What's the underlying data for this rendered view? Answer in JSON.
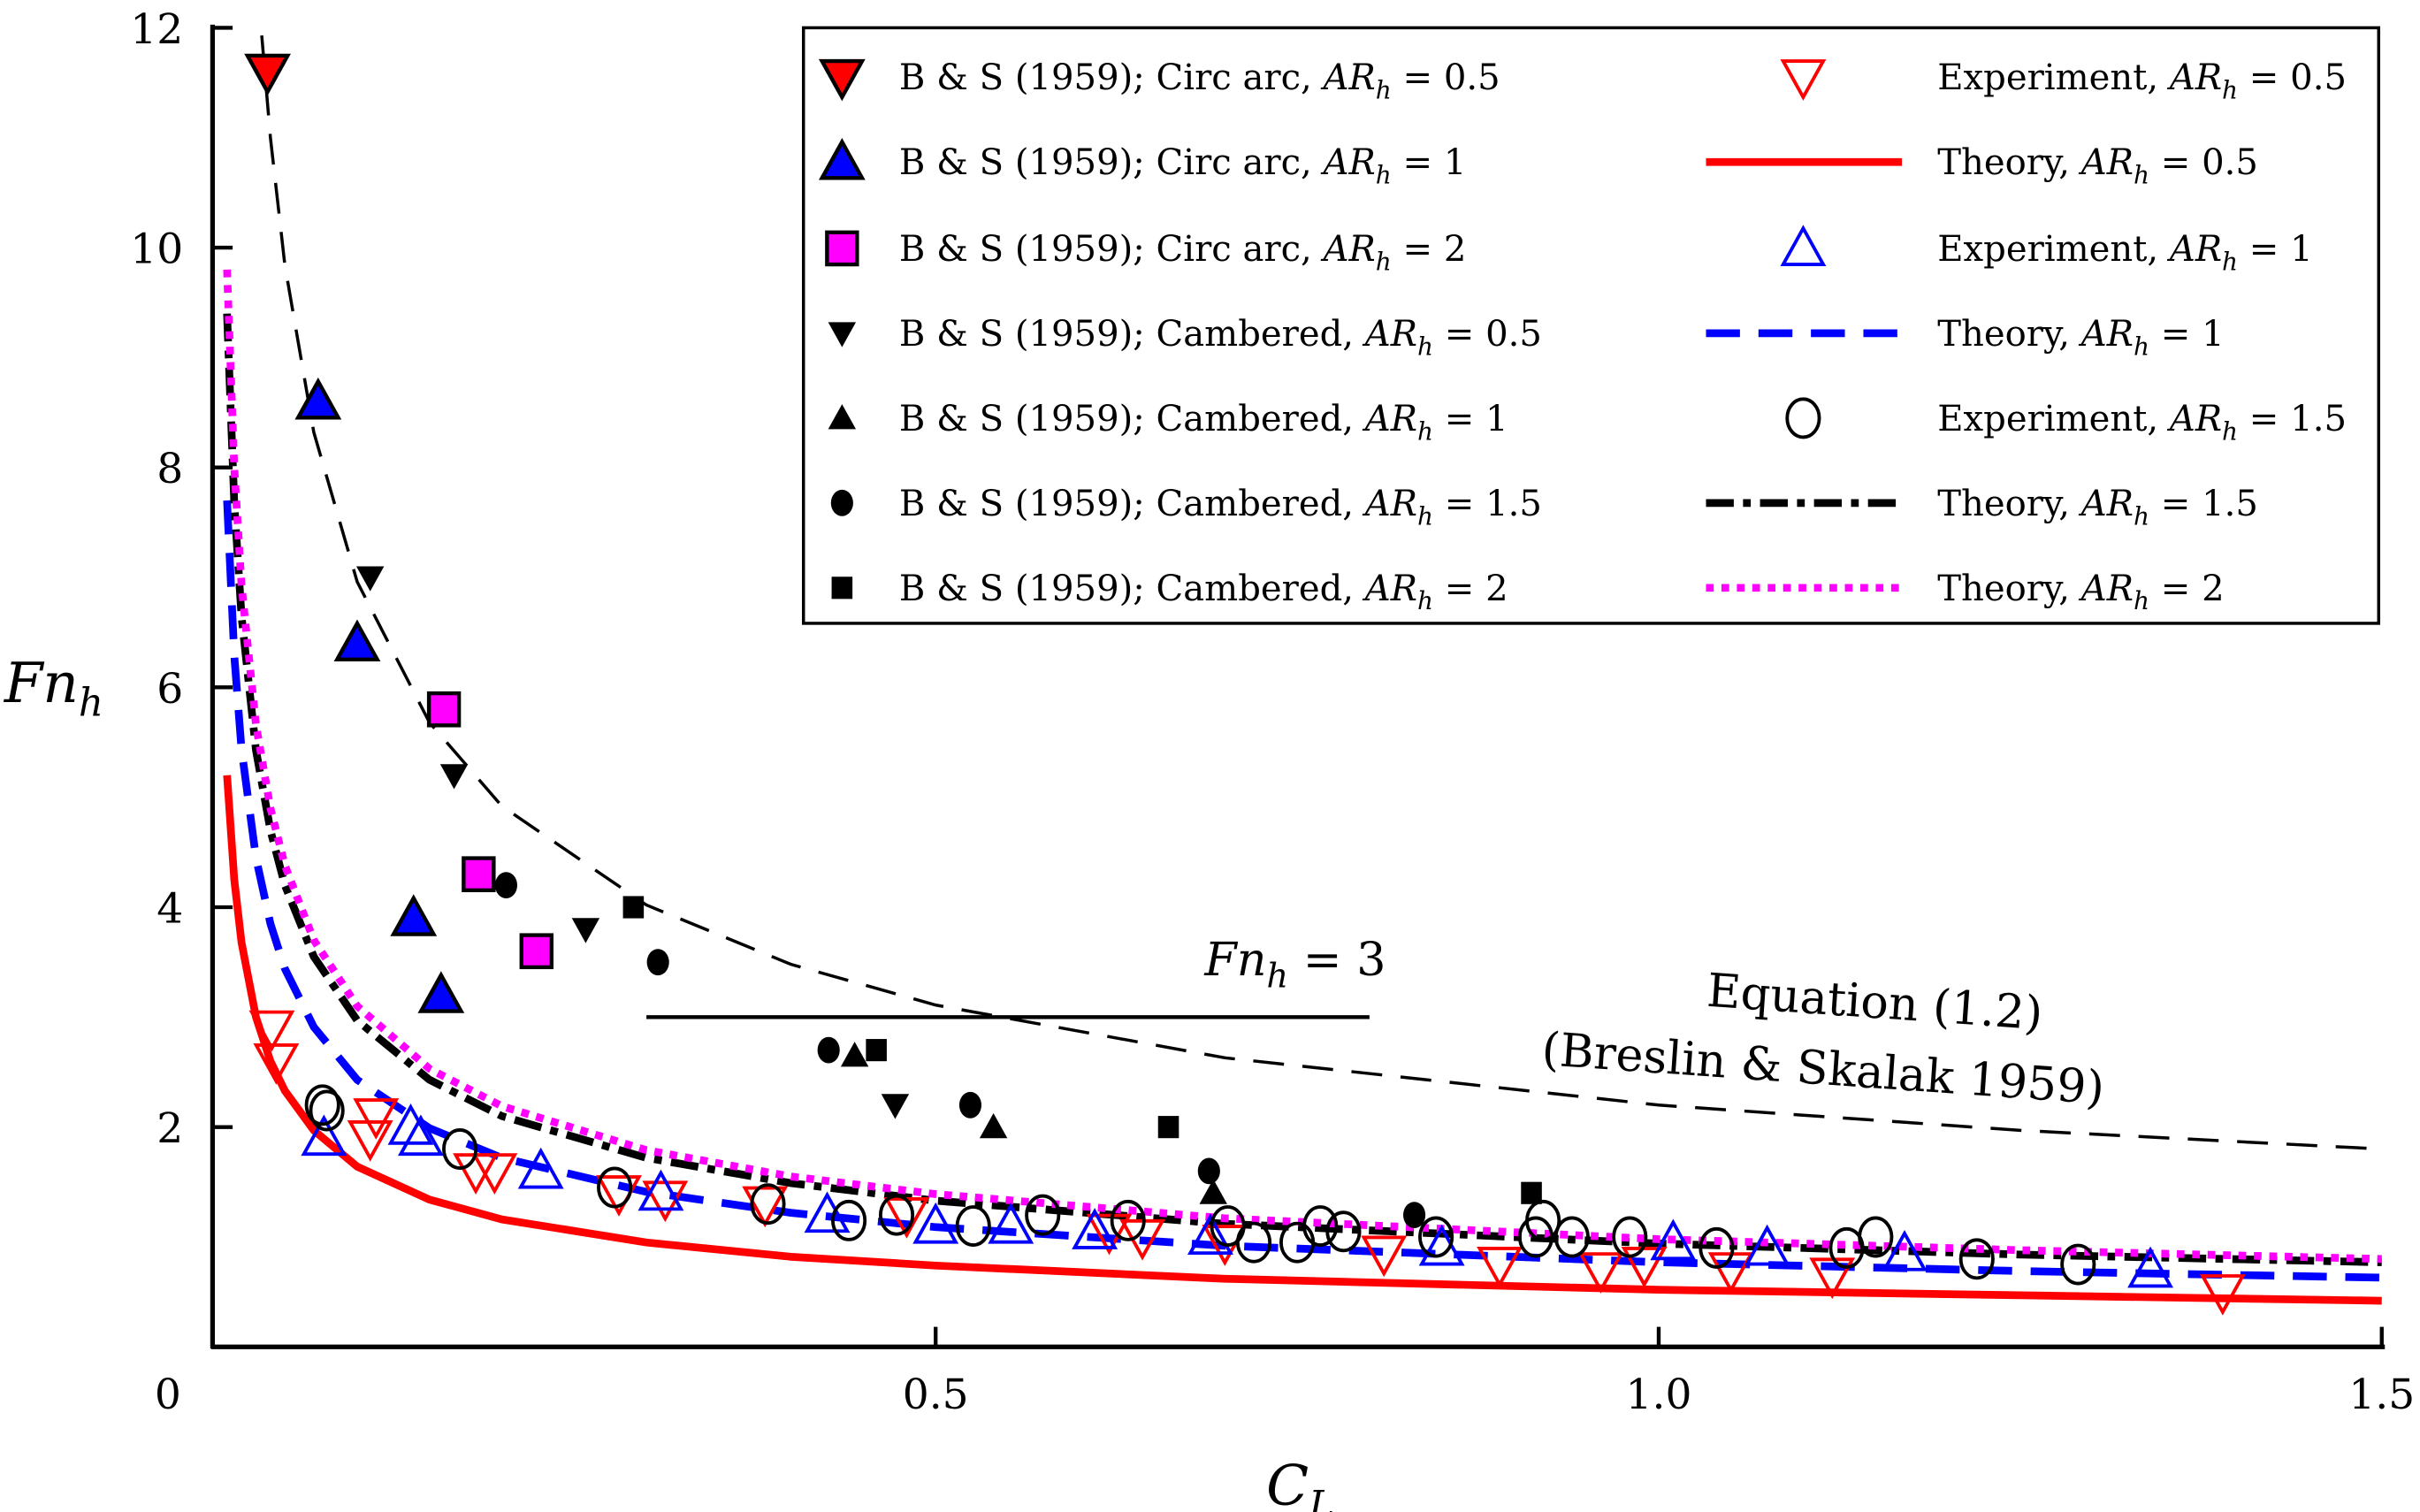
{
  "chart_data": {
    "type": "scatter",
    "title": "",
    "xlabel": {
      "main": "C",
      "sub": "L"
    },
    "ylabel": {
      "main": "Fn",
      "sub": "h"
    },
    "xlim": [
      0,
      1.5
    ],
    "ylim": [
      0,
      12
    ],
    "x_ticks": [
      {
        "v": 0.5,
        "label": "0.5"
      },
      {
        "v": 1.0,
        "label": "1.0"
      },
      {
        "v": 1.5,
        "label": "1.5"
      }
    ],
    "y_ticks": [
      {
        "v": 2,
        "label": "2"
      },
      {
        "v": 4,
        "label": "4"
      },
      {
        "v": 6,
        "label": "6"
      },
      {
        "v": 8,
        "label": "8"
      },
      {
        "v": 10,
        "label": "10"
      },
      {
        "v": 12,
        "label": "12"
      }
    ],
    "origin_label": "0",
    "grid": false,
    "legend_placement": "top-right",
    "series": [
      {
        "name": "B & S (1959);  Circ arc,  AR_h = 0.5",
        "marker": "tri-down-filled",
        "color": "#ff0000",
        "points": [
          [
            0.038,
            11.6
          ]
        ]
      },
      {
        "name": "B & S (1959);  Circ arc,  AR_h = 1",
        "marker": "tri-up-filled",
        "color": "#0000ff",
        "points": [
          [
            0.073,
            8.6
          ],
          [
            0.1,
            6.4
          ],
          [
            0.139,
            3.9
          ],
          [
            0.158,
            3.2
          ]
        ]
      },
      {
        "name": "B & S (1959);  Circ arc,  AR_h = 2",
        "marker": "square-filled",
        "color": "#ff00ff",
        "points": [
          [
            0.16,
            5.8
          ],
          [
            0.184,
            4.3
          ],
          [
            0.224,
            3.6
          ]
        ]
      },
      {
        "name": "B & S (1959);  Cambered,  AR_h = 0.5",
        "marker": "tri-down-solid",
        "color": "#000000",
        "points": [
          [
            0.109,
            7.0
          ],
          [
            0.167,
            5.2
          ],
          [
            0.258,
            3.8
          ],
          [
            0.472,
            2.2
          ]
        ]
      },
      {
        "name": "B & S (1959);  Cambered,  AR_h = 1",
        "marker": "tri-up-solid",
        "color": "#000000",
        "points": [
          [
            0.444,
            2.65
          ],
          [
            0.54,
            2.0
          ],
          [
            0.692,
            1.4
          ]
        ]
      },
      {
        "name": "B & S (1959);  Cambered,  AR_h = 1.5",
        "marker": "circle-solid",
        "color": "#000000",
        "points": [
          [
            0.203,
            4.2
          ],
          [
            0.308,
            3.5
          ],
          [
            0.426,
            2.7
          ],
          [
            0.524,
            2.2
          ],
          [
            0.689,
            1.6
          ],
          [
            0.831,
            1.2
          ]
        ]
      },
      {
        "name": "B & S (1959);  Cambered,  AR_h = 2",
        "marker": "square-solid",
        "color": "#000000",
        "points": [
          [
            0.291,
            4.0
          ],
          [
            0.459,
            2.7
          ],
          [
            0.661,
            2.0
          ],
          [
            0.912,
            1.4
          ]
        ]
      },
      {
        "name": "Experiment,  AR_h = 0.5",
        "marker": "tri-down-open",
        "color": "#ff0000",
        "points": [
          [
            0.041,
            2.9
          ],
          [
            0.044,
            2.6
          ],
          [
            0.113,
            2.1
          ],
          [
            0.109,
            1.9
          ],
          [
            0.182,
            1.6
          ],
          [
            0.195,
            1.6
          ],
          [
            0.281,
            1.4
          ],
          [
            0.313,
            1.35
          ],
          [
            0.382,
            1.3
          ],
          [
            0.48,
            1.2
          ],
          [
            0.62,
            1.05
          ],
          [
            0.643,
            1.0
          ],
          [
            0.7,
            0.95
          ],
          [
            0.81,
            0.85
          ],
          [
            0.89,
            0.75
          ],
          [
            0.96,
            0.7
          ],
          [
            0.99,
            0.75
          ],
          [
            1.05,
            0.7
          ],
          [
            1.12,
            0.65
          ],
          [
            1.39,
            0.5
          ]
        ]
      },
      {
        "name": "Theory,  AR_h = 0.5",
        "marker": "line-solid",
        "color": "#ff0000",
        "line": true,
        "points": [
          [
            0.01,
            5.2
          ],
          [
            0.015,
            4.25
          ],
          [
            0.02,
            3.68
          ],
          [
            0.03,
            3.0
          ],
          [
            0.04,
            2.6
          ],
          [
            0.05,
            2.33
          ],
          [
            0.07,
            1.97
          ],
          [
            0.1,
            1.64
          ],
          [
            0.15,
            1.34
          ],
          [
            0.2,
            1.16
          ],
          [
            0.3,
            0.95
          ],
          [
            0.4,
            0.82
          ],
          [
            0.5,
            0.74
          ],
          [
            0.7,
            0.62
          ],
          [
            1.0,
            0.52
          ],
          [
            1.25,
            0.47
          ],
          [
            1.5,
            0.42
          ]
        ]
      },
      {
        "name": "Experiment,  AR_h = 1",
        "marker": "tri-up-open",
        "color": "#0000ff",
        "points": [
          [
            0.077,
            1.9
          ],
          [
            0.137,
            2.0
          ],
          [
            0.144,
            1.9
          ],
          [
            0.227,
            1.6
          ],
          [
            0.31,
            1.4
          ],
          [
            0.425,
            1.2
          ],
          [
            0.5,
            1.1
          ],
          [
            0.552,
            1.1
          ],
          [
            0.61,
            1.05
          ],
          [
            0.69,
            1.0
          ],
          [
            0.85,
            0.9
          ],
          [
            1.01,
            0.95
          ],
          [
            1.075,
            0.9
          ],
          [
            1.17,
            0.85
          ],
          [
            1.34,
            0.7
          ]
        ]
      },
      {
        "name": "Theory,  AR_h = 1",
        "marker": "line-dashed",
        "color": "#0000ff",
        "line": true,
        "points": [
          [
            0.01,
            7.7
          ],
          [
            0.015,
            6.29
          ],
          [
            0.02,
            5.44
          ],
          [
            0.03,
            4.45
          ],
          [
            0.04,
            3.85
          ],
          [
            0.05,
            3.44
          ],
          [
            0.07,
            2.91
          ],
          [
            0.1,
            2.43
          ],
          [
            0.15,
            1.99
          ],
          [
            0.2,
            1.72
          ],
          [
            0.3,
            1.41
          ],
          [
            0.4,
            1.22
          ],
          [
            0.5,
            1.09
          ],
          [
            0.7,
            0.92
          ],
          [
            1.0,
            0.77
          ],
          [
            1.25,
            0.69
          ],
          [
            1.5,
            0.63
          ]
        ]
      },
      {
        "name": "Experiment,  AR_h = 1.5",
        "marker": "circle-open",
        "color": "#000000",
        "points": [
          [
            0.076,
            2.2
          ],
          [
            0.079,
            2.15
          ],
          [
            0.171,
            1.8
          ],
          [
            0.278,
            1.45
          ],
          [
            0.384,
            1.3
          ],
          [
            0.44,
            1.15
          ],
          [
            0.473,
            1.2
          ],
          [
            0.526,
            1.1
          ],
          [
            0.574,
            1.2
          ],
          [
            0.633,
            1.15
          ],
          [
            0.702,
            1.1
          ],
          [
            0.72,
            0.95
          ],
          [
            0.75,
            0.95
          ],
          [
            0.766,
            1.1
          ],
          [
            0.782,
            1.05
          ],
          [
            0.846,
            1.0
          ],
          [
            0.915,
            1.0
          ],
          [
            0.92,
            1.15
          ],
          [
            0.94,
            1.0
          ],
          [
            0.98,
            1.0
          ],
          [
            1.04,
            0.9
          ],
          [
            1.13,
            0.9
          ],
          [
            1.15,
            1.0
          ],
          [
            1.22,
            0.8
          ],
          [
            1.29,
            0.75
          ]
        ]
      },
      {
        "name": "Theory,  AR_h = 1.5",
        "marker": "line-dashdot",
        "color": "#000000",
        "line": true,
        "points": [
          [
            0.01,
            9.4
          ],
          [
            0.015,
            7.68
          ],
          [
            0.02,
            6.65
          ],
          [
            0.03,
            5.43
          ],
          [
            0.04,
            4.7
          ],
          [
            0.05,
            4.2
          ],
          [
            0.07,
            3.55
          ],
          [
            0.1,
            2.97
          ],
          [
            0.15,
            2.43
          ],
          [
            0.2,
            2.1
          ],
          [
            0.3,
            1.72
          ],
          [
            0.4,
            1.49
          ],
          [
            0.5,
            1.33
          ],
          [
            0.7,
            1.12
          ],
          [
            1.0,
            0.94
          ],
          [
            1.25,
            0.84
          ],
          [
            1.5,
            0.77
          ]
        ]
      },
      {
        "name": "Theory,  AR_h = 2",
        "marker": "line-dotted",
        "color": "#ff00ff",
        "line": true,
        "points": [
          [
            0.01,
            9.8
          ],
          [
            0.015,
            8.0
          ],
          [
            0.02,
            6.93
          ],
          [
            0.03,
            5.66
          ],
          [
            0.04,
            4.9
          ],
          [
            0.05,
            4.38
          ],
          [
            0.07,
            3.7
          ],
          [
            0.1,
            3.1
          ],
          [
            0.15,
            2.53
          ],
          [
            0.2,
            2.19
          ],
          [
            0.3,
            1.79
          ],
          [
            0.4,
            1.55
          ],
          [
            0.5,
            1.39
          ],
          [
            0.7,
            1.17
          ],
          [
            1.0,
            0.98
          ],
          [
            1.25,
            0.88
          ],
          [
            1.5,
            0.8
          ]
        ]
      }
    ],
    "legend_order_left": [
      0,
      1,
      2,
      3,
      4,
      5,
      6
    ],
    "legend_order_right": [
      7,
      8,
      9,
      10,
      11,
      12,
      13
    ],
    "equation_curve": {
      "points": [
        [
          0.034,
          11.93
        ],
        [
          0.04,
          11.0
        ],
        [
          0.05,
          9.84
        ],
        [
          0.07,
          8.32
        ],
        [
          0.1,
          6.96
        ],
        [
          0.15,
          5.68
        ],
        [
          0.2,
          4.92
        ],
        [
          0.3,
          4.02
        ],
        [
          0.4,
          3.48
        ],
        [
          0.5,
          3.11
        ],
        [
          0.7,
          2.63
        ],
        [
          1.0,
          2.2
        ],
        [
          1.25,
          1.97
        ],
        [
          1.5,
          1.8
        ]
      ],
      "color": "#000000",
      "style": "dashed"
    },
    "annotations": {
      "fn3_line": {
        "x": [
          0.3,
          0.8
        ],
        "y": 3,
        "label_main": "Fn",
        "label_sub": "h",
        "label_rest": " = 3"
      },
      "equation_label_1": "Equation (1.2)",
      "equation_label_2": "(Breslin & Skalak 1959)"
    }
  }
}
